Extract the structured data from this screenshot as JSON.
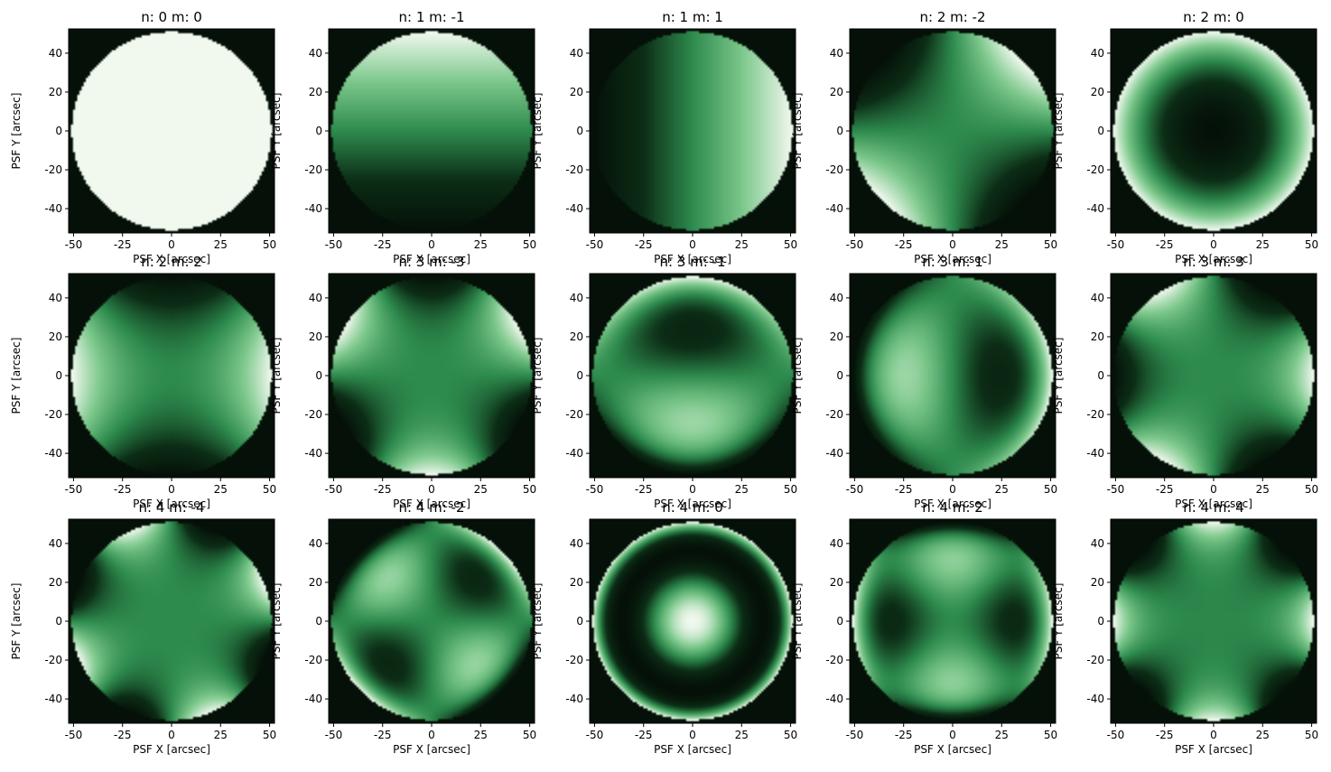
{
  "chart_data": {
    "type": "heatmap",
    "colormap": "greens (dark to light)",
    "colors": {
      "dark": "#051108",
      "mid": "#2e8b4e",
      "light": "#f1f9ef"
    },
    "grid": false,
    "xlabel": "PSF X [arcsec]",
    "ylabel": "PSF Y [arcsec]",
    "xlim": [
      -52.5,
      52.5
    ],
    "ylim": [
      -52.5,
      52.5
    ],
    "xticks": [
      -50,
      -25,
      0,
      25,
      50
    ],
    "yticks": [
      -40,
      -20,
      0,
      20,
      40
    ],
    "pupil_radius": 51,
    "panels": [
      {
        "title": "n: 0 m: 0",
        "n": 0,
        "m": 0
      },
      {
        "title": "n: 1 m: -1",
        "n": 1,
        "m": -1
      },
      {
        "title": "n: 1 m: 1",
        "n": 1,
        "m": 1
      },
      {
        "title": "n: 2 m: -2",
        "n": 2,
        "m": -2
      },
      {
        "title": "n: 2 m: 0",
        "n": 2,
        "m": 0
      },
      {
        "title": "n: 2 m: 2",
        "n": 2,
        "m": 2
      },
      {
        "title": "n: 3 m: -3",
        "n": 3,
        "m": -3
      },
      {
        "title": "n: 3 m: -1",
        "n": 3,
        "m": -1
      },
      {
        "title": "n: 3 m: 1",
        "n": 3,
        "m": 1
      },
      {
        "title": "n: 3 m: 3",
        "n": 3,
        "m": 3
      },
      {
        "title": "n: 4 m: -4",
        "n": 4,
        "m": -4
      },
      {
        "title": "n: 4 m: -2",
        "n": 4,
        "m": -2
      },
      {
        "title": "n: 4 m: 0",
        "n": 4,
        "m": 0
      },
      {
        "title": "n: 4 m: 2",
        "n": 4,
        "m": 2
      },
      {
        "title": "n: 4 m: 4",
        "n": 4,
        "m": 4
      }
    ]
  }
}
